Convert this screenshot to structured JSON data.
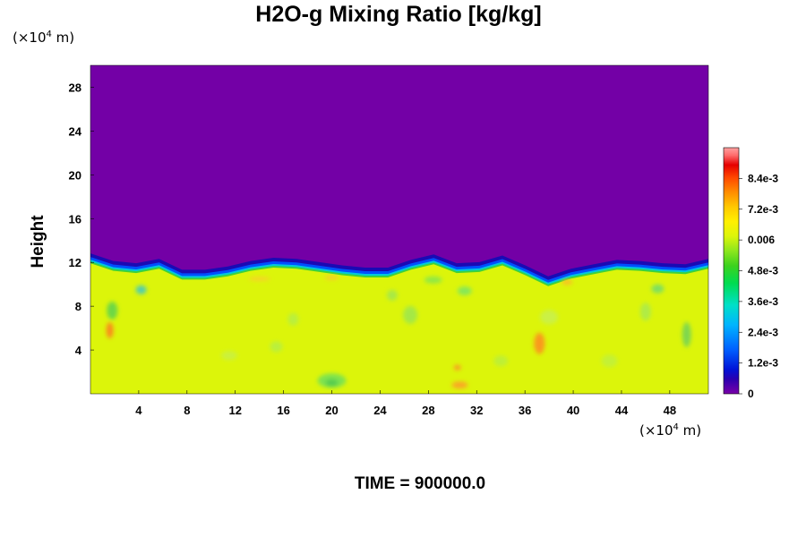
{
  "chart_data": {
    "type": "heatmap",
    "title": "H2O-g Mixing Ratio [kg/kg]",
    "ylabel": "Height",
    "y_unit_prefix": "(×10",
    "y_unit_exp": "4",
    "y_unit_suffix": " m)",
    "x_unit_prefix": "(×10",
    "x_unit_exp": "4",
    "x_unit_suffix": " m)",
    "xlim": [
      0,
      51.2
    ],
    "ylim": [
      0,
      30
    ],
    "x_ticks": [
      4,
      8,
      12,
      16,
      20,
      24,
      28,
      32,
      36,
      40,
      44,
      48
    ],
    "x_tick_labels": [
      "4",
      "8",
      "12",
      "16",
      "20",
      "24",
      "28",
      "32",
      "36",
      "40",
      "44",
      "48"
    ],
    "y_ticks": [
      4,
      8,
      12,
      16,
      20,
      24,
      28
    ],
    "y_tick_labels": [
      "4",
      "8",
      "12",
      "16",
      "20",
      "24",
      "28"
    ],
    "interface_height": [
      12.5,
      11.8,
      11.6,
      12.0,
      11.0,
      11.0,
      11.3,
      11.8,
      12.1,
      12.0,
      11.7,
      11.4,
      11.2,
      11.2,
      11.9,
      12.4,
      11.6,
      11.7,
      12.3,
      11.4,
      10.4,
      11.1,
      11.5,
      11.9,
      11.8,
      11.6,
      11.5,
      12.0
    ],
    "lower_layer_value": "0.006",
    "upper_layer_value": "0",
    "colorbar": {
      "min": 0,
      "max": 0.0096,
      "labels": [
        "8.4e-3",
        "7.2e-3",
        "0.006",
        "4.8e-3",
        "3.6e-3",
        "2.4e-3",
        "1.2e-3",
        "0"
      ],
      "label_values": [
        0.0084,
        0.0072,
        0.006,
        0.0048,
        0.0036,
        0.0024,
        0.0012,
        0
      ]
    },
    "time_label": "TIME = 900000.0"
  },
  "colors": {
    "dry_layer": "#7300a6",
    "moist_layer": "#dcf50a",
    "interface_dark": "#1a0ab4",
    "interface_blue": "#0050ff",
    "interface_cyan": "#00c8dc",
    "interface_green": "#3cd23c"
  }
}
